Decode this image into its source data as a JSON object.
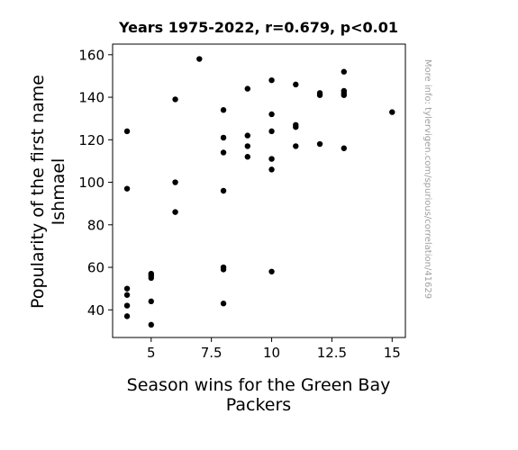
{
  "chart_data": {
    "type": "scatter",
    "title": "Years 1975-2022, r=0.679, p<0.01",
    "xlabel_lines": [
      "Season wins for the Green Bay",
      "Packers"
    ],
    "ylabel_lines": [
      "Popularity of the first name",
      "Ishmael"
    ],
    "xlim": [
      3.4,
      15.55
    ],
    "ylim": [
      27,
      165
    ],
    "xticks": [
      5,
      7.5,
      10,
      12.5,
      15
    ],
    "xtick_labels": [
      "5",
      "7.5",
      "10",
      "12.5",
      "15"
    ],
    "yticks": [
      40,
      60,
      80,
      100,
      120,
      140,
      160
    ],
    "ytick_labels": [
      "40",
      "60",
      "80",
      "100",
      "120",
      "140",
      "160"
    ],
    "grid": false,
    "point_color": "#000000",
    "points": [
      {
        "x": 4,
        "y": 124
      },
      {
        "x": 4,
        "y": 97
      },
      {
        "x": 4,
        "y": 50
      },
      {
        "x": 4,
        "y": 47
      },
      {
        "x": 4,
        "y": 42
      },
      {
        "x": 4,
        "y": 37
      },
      {
        "x": 5,
        "y": 57
      },
      {
        "x": 5,
        "y": 56
      },
      {
        "x": 5,
        "y": 55
      },
      {
        "x": 5,
        "y": 44
      },
      {
        "x": 5,
        "y": 33
      },
      {
        "x": 6,
        "y": 139
      },
      {
        "x": 6,
        "y": 100
      },
      {
        "x": 6,
        "y": 86
      },
      {
        "x": 7,
        "y": 158
      },
      {
        "x": 8,
        "y": 134
      },
      {
        "x": 8,
        "y": 121
      },
      {
        "x": 8,
        "y": 114
      },
      {
        "x": 8,
        "y": 96
      },
      {
        "x": 8,
        "y": 60
      },
      {
        "x": 8,
        "y": 59
      },
      {
        "x": 8,
        "y": 43
      },
      {
        "x": 9,
        "y": 144
      },
      {
        "x": 9,
        "y": 122
      },
      {
        "x": 9,
        "y": 117
      },
      {
        "x": 9,
        "y": 112
      },
      {
        "x": 10,
        "y": 148
      },
      {
        "x": 10,
        "y": 132
      },
      {
        "x": 10,
        "y": 124
      },
      {
        "x": 10,
        "y": 111
      },
      {
        "x": 10,
        "y": 106
      },
      {
        "x": 10,
        "y": 58
      },
      {
        "x": 11,
        "y": 146
      },
      {
        "x": 11,
        "y": 127
      },
      {
        "x": 11,
        "y": 126
      },
      {
        "x": 11,
        "y": 117
      },
      {
        "x": 12,
        "y": 142
      },
      {
        "x": 12,
        "y": 141
      },
      {
        "x": 12,
        "y": 118
      },
      {
        "x": 13,
        "y": 152
      },
      {
        "x": 13,
        "y": 143
      },
      {
        "x": 13,
        "y": 142
      },
      {
        "x": 13,
        "y": 141
      },
      {
        "x": 13,
        "y": 116
      },
      {
        "x": 15,
        "y": 133
      }
    ]
  },
  "watermark": "More info: tylervigen.com/spurious/correlation/41629"
}
